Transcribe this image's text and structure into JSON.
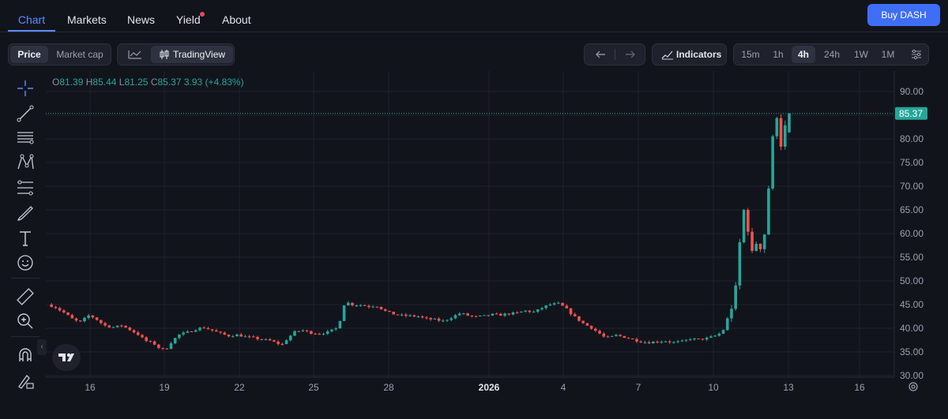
{
  "nav": {
    "tabs": [
      {
        "label": "Chart",
        "active": true
      },
      {
        "label": "Markets",
        "active": false
      },
      {
        "label": "News",
        "active": false
      },
      {
        "label": "Yield",
        "active": false,
        "has_dot": true
      },
      {
        "label": "About",
        "active": false
      }
    ],
    "buy_label": "Buy DASH"
  },
  "toolbar": {
    "price_label": "Price",
    "marketcap_label": "Market cap",
    "tradingview_label": "TradingView",
    "indicators_label": "Indicators",
    "timeframes": [
      "15m",
      "1h",
      "4h",
      "24h",
      "1W",
      "1M"
    ],
    "active_timeframe": "4h"
  },
  "legend": {
    "o_label": "O",
    "o": "81.39",
    "h_label": "H",
    "h": "85.44",
    "l_label": "L",
    "l": "81.25",
    "c_label": "C",
    "c": "85.37",
    "change": "3.93 (+4.83%)"
  },
  "colors": {
    "up": "#26a69a",
    "down": "#ef5350",
    "accent": "#3f6ef6",
    "last_price_bg": "#26a69a"
  },
  "tools": [
    "crosshair-icon",
    "trend-line-icon",
    "horizontal-lines-icon",
    "pattern-icon",
    "fib-icon",
    "brush-icon",
    "text-icon",
    "emoji-icon",
    "ruler-icon",
    "zoom-in-icon",
    "magnet-icon",
    "lock-drawing-icon"
  ],
  "chart_data": {
    "type": "candlestick",
    "y_ticks": [
      "90.00",
      "85.00",
      "80.00",
      "75.00",
      "70.00",
      "65.00",
      "60.00",
      "55.00",
      "50.00",
      "45.00",
      "40.00",
      "35.00",
      "30.00"
    ],
    "ylim": [
      30,
      90
    ],
    "x_ticks": [
      "16",
      "19",
      "22",
      "25",
      "28",
      "2026",
      "4",
      "7",
      "10",
      "13",
      "16"
    ],
    "last_price": "85.37",
    "grid": true,
    "path": [
      [
        0,
        45.0
      ],
      [
        0.3,
        44.5
      ],
      [
        0.7,
        43.2
      ],
      [
        1.0,
        42.0
      ],
      [
        1.3,
        41.2
      ],
      [
        1.7,
        42.8
      ],
      [
        2.0,
        41.8
      ],
      [
        2.3,
        40.6
      ],
      [
        2.7,
        40.2
      ],
      [
        3.0,
        40.6
      ],
      [
        3.3,
        39.8
      ],
      [
        3.7,
        38.6
      ],
      [
        3.9,
        37.6
      ],
      [
        4.0,
        37.3
      ],
      [
        4.3,
        36.8
      ],
      [
        4.6,
        35.5
      ],
      [
        4.8,
        35.6
      ],
      [
        5.0,
        37.0
      ],
      [
        5.3,
        38.6
      ],
      [
        5.7,
        39.2
      ],
      [
        6.0,
        39.8
      ],
      [
        6.3,
        40.2
      ],
      [
        6.7,
        39.5
      ],
      [
        7.0,
        38.9
      ],
      [
        7.3,
        38.4
      ],
      [
        7.7,
        38.6
      ],
      [
        8.0,
        38.2
      ],
      [
        8.3,
        38.0
      ],
      [
        8.7,
        37.6
      ],
      [
        9.0,
        37.4
      ],
      [
        9.3,
        36.8
      ],
      [
        9.5,
        36.6
      ],
      [
        9.7,
        37.8
      ],
      [
        10.0,
        39.2
      ],
      [
        10.3,
        39.6
      ],
      [
        10.7,
        39.0
      ],
      [
        11.0,
        38.9
      ],
      [
        11.3,
        39.1
      ],
      [
        11.7,
        40.0
      ],
      [
        11.9,
        42.6
      ],
      [
        12.0,
        45.0
      ],
      [
        12.2,
        45.4
      ],
      [
        12.3,
        45.0
      ],
      [
        12.7,
        44.9
      ],
      [
        13.0,
        44.6
      ],
      [
        13.3,
        44.8
      ],
      [
        13.7,
        43.5
      ],
      [
        14.0,
        43.0
      ],
      [
        14.3,
        42.7
      ],
      [
        14.7,
        42.6
      ],
      [
        15.0,
        42.5
      ],
      [
        15.3,
        42.0
      ],
      [
        15.7,
        41.8
      ],
      [
        16.0,
        41.5
      ],
      [
        16.3,
        42.2
      ],
      [
        16.7,
        43.2
      ],
      [
        17.0,
        42.7
      ],
      [
        17.3,
        42.4
      ],
      [
        17.7,
        42.6
      ],
      [
        18.0,
        42.9
      ],
      [
        18.3,
        42.8
      ],
      [
        18.7,
        43.1
      ],
      [
        19.0,
        43.2
      ],
      [
        19.3,
        43.7
      ],
      [
        19.7,
        43.4
      ],
      [
        20.0,
        44.3
      ],
      [
        20.3,
        45.0
      ],
      [
        20.7,
        45.2
      ],
      [
        21.0,
        44.0
      ],
      [
        21.3,
        42.5
      ],
      [
        21.7,
        40.9
      ],
      [
        22.0,
        40.1
      ],
      [
        22.3,
        39.0
      ],
      [
        22.5,
        38.2
      ],
      [
        22.7,
        38.0
      ],
      [
        23.0,
        38.5
      ],
      [
        23.3,
        38.2
      ],
      [
        23.7,
        37.6
      ],
      [
        24.0,
        37.2
      ],
      [
        24.3,
        37.0
      ],
      [
        24.7,
        37.2
      ],
      [
        25.0,
        37.3
      ],
      [
        25.3,
        37.0
      ],
      [
        25.7,
        37.2
      ],
      [
        26.0,
        37.8
      ],
      [
        26.3,
        37.6
      ],
      [
        26.7,
        37.9
      ],
      [
        27.0,
        38.4
      ],
      [
        27.3,
        39.2
      ],
      [
        27.5,
        42.0
      ],
      [
        27.7,
        45.0
      ],
      [
        27.9,
        50.0
      ],
      [
        28.0,
        58.0
      ],
      [
        28.1,
        64.0
      ],
      [
        28.25,
        66.0
      ],
      [
        28.35,
        60.0
      ],
      [
        28.45,
        56.0
      ],
      [
        28.55,
        55.5
      ],
      [
        28.65,
        58.5
      ],
      [
        28.75,
        56.0
      ],
      [
        28.85,
        57.5
      ],
      [
        29.0,
        60.0
      ],
      [
        29.1,
        65.0
      ],
      [
        29.2,
        72.0
      ],
      [
        29.3,
        78.0
      ],
      [
        29.4,
        84.0
      ],
      [
        29.5,
        85.0
      ],
      [
        29.6,
        80.5
      ],
      [
        29.7,
        78.0
      ],
      [
        29.8,
        83.0
      ],
      [
        29.9,
        81.4
      ],
      [
        30.0,
        85.37
      ]
    ]
  }
}
